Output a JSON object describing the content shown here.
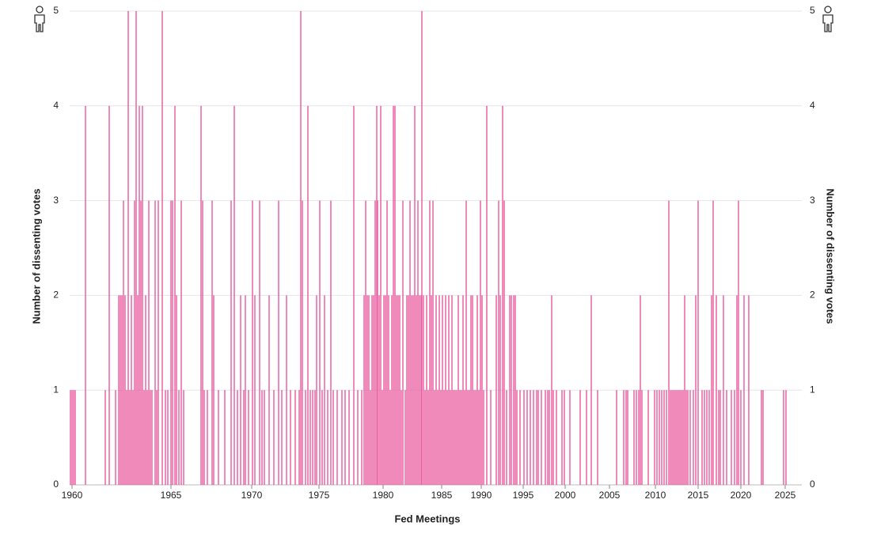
{
  "chart_data": {
    "type": "bar",
    "xlabel": "Fed Meetings",
    "ylabel": "Number of dissenting votes",
    "color": "#e8559a",
    "grid": true,
    "xlim": [
      0,
      925
    ],
    "ylim": [
      0,
      5
    ],
    "yticks": [
      0,
      1,
      2,
      3,
      4,
      5
    ],
    "xticks": [
      {
        "value": 3,
        "label": "1960"
      },
      {
        "value": 128,
        "label": "1965"
      },
      {
        "value": 230,
        "label": "1970"
      },
      {
        "value": 315,
        "label": "1975"
      },
      {
        "value": 396,
        "label": "1980"
      },
      {
        "value": 470,
        "label": "1985"
      },
      {
        "value": 520,
        "label": "1990"
      },
      {
        "value": 573,
        "label": "1995"
      },
      {
        "value": 626,
        "label": "2000"
      },
      {
        "value": 682,
        "label": "2005"
      },
      {
        "value": 740,
        "label": "2010"
      },
      {
        "value": 794,
        "label": "2015"
      },
      {
        "value": 848,
        "label": "2020"
      },
      {
        "value": 904,
        "label": "2025"
      }
    ],
    "x": [
      1,
      3,
      5,
      7,
      20,
      45,
      50,
      58,
      62,
      64,
      66,
      68,
      70,
      72,
      74,
      76,
      78,
      80,
      82,
      84,
      86,
      88,
      90,
      92,
      94,
      96,
      98,
      100,
      102,
      104,
      108,
      110,
      112,
      117,
      121,
      124,
      128,
      130,
      133,
      135,
      138,
      141,
      144,
      166,
      168,
      170,
      174,
      180,
      182,
      188,
      196,
      204,
      208,
      212,
      216,
      220,
      222,
      226,
      231,
      234,
      240,
      243,
      246,
      252,
      258,
      264,
      268,
      274,
      279,
      285,
      290,
      292,
      294,
      298,
      301,
      304,
      307,
      310,
      312,
      316,
      319,
      322,
      326,
      330,
      333,
      338,
      344,
      348,
      353,
      359,
      364,
      369,
      372,
      374,
      376,
      378,
      380,
      382,
      384,
      386,
      388,
      389,
      391,
      393,
      395,
      397,
      399,
      401,
      403,
      405,
      407,
      409,
      411,
      413,
      415,
      417,
      419,
      421,
      424,
      426,
      428,
      430,
      432,
      434,
      436,
      438,
      440,
      442,
      444,
      445,
      447,
      449,
      451,
      453,
      455,
      457,
      459,
      461,
      463,
      465,
      467,
      469,
      471,
      473,
      475,
      477,
      479,
      481,
      483,
      485,
      487,
      489,
      491,
      493,
      495,
      497,
      499,
      501,
      503,
      505,
      507,
      509,
      511,
      513,
      515,
      517,
      519,
      521,
      523,
      527,
      532,
      539,
      542,
      544,
      547,
      549,
      552,
      556,
      558,
      561,
      563,
      565,
      569,
      574,
      578,
      582,
      586,
      590,
      592,
      596,
      601,
      604,
      606,
      609,
      611,
      615,
      622,
      625,
      632,
      645,
      653,
      659,
      667,
      691,
      700,
      703,
      705,
      713,
      716,
      719,
      721,
      723,
      731,
      739,
      742,
      745,
      748,
      751,
      754,
      757,
      759,
      761,
      763,
      765,
      767,
      769,
      771,
      773,
      775,
      777,
      779,
      781,
      784,
      788,
      791,
      794,
      799,
      802,
      805,
      808,
      811,
      813,
      817,
      820,
      822,
      826,
      830,
      836,
      840,
      843,
      845,
      848,
      852,
      858,
      874,
      876,
      902,
      905
    ],
    "values": [
      1,
      1,
      1,
      1,
      4,
      1,
      4,
      1,
      2,
      2,
      2,
      3,
      2,
      1,
      5,
      1,
      2,
      1,
      3,
      5,
      2,
      4,
      3,
      4,
      1,
      2,
      1,
      3,
      1,
      1,
      3,
      1,
      3,
      5,
      1,
      1,
      3,
      3,
      4,
      2,
      1,
      3,
      1,
      4,
      3,
      1,
      1,
      3,
      2,
      1,
      1,
      3,
      4,
      1,
      2,
      1,
      2,
      1,
      3,
      2,
      3,
      1,
      1,
      2,
      1,
      3,
      1,
      2,
      1,
      1,
      1,
      5,
      3,
      1,
      4,
      1,
      1,
      1,
      2,
      3,
      1,
      2,
      1,
      3,
      1,
      1,
      1,
      1,
      1,
      4,
      1,
      1,
      2,
      3,
      2,
      2,
      1,
      2,
      2,
      3,
      4,
      3,
      2,
      4,
      1,
      2,
      2,
      3,
      2,
      1,
      2,
      4,
      4,
      2,
      2,
      2,
      1,
      3,
      1,
      2,
      2,
      3,
      2,
      2,
      4,
      2,
      3,
      2,
      2,
      5,
      2,
      1,
      2,
      1,
      3,
      2,
      3,
      1,
      2,
      1,
      2,
      1,
      2,
      1,
      2,
      1,
      2,
      1,
      2,
      1,
      1,
      1,
      2,
      1,
      1,
      2,
      1,
      3,
      1,
      1,
      2,
      2,
      1,
      1,
      2,
      1,
      3,
      2,
      1,
      4,
      1,
      2,
      3,
      2,
      4,
      3,
      1,
      2,
      2,
      2,
      2,
      1,
      1,
      1,
      1,
      1,
      1,
      1,
      1,
      1,
      1,
      1,
      1,
      2,
      1,
      1,
      1,
      1,
      1,
      1,
      1,
      2,
      1,
      1,
      1,
      1,
      1,
      1,
      1,
      1,
      2,
      1,
      1,
      1,
      1,
      1,
      1,
      1,
      1,
      3,
      1,
      1,
      1,
      1,
      1,
      1,
      1,
      1,
      1,
      2,
      1,
      1,
      1,
      1,
      2,
      3,
      1,
      1,
      1,
      1,
      2,
      3,
      2,
      1,
      1,
      2,
      1,
      1,
      1,
      2,
      3,
      1,
      2,
      2,
      1,
      1,
      1,
      1
    ]
  }
}
